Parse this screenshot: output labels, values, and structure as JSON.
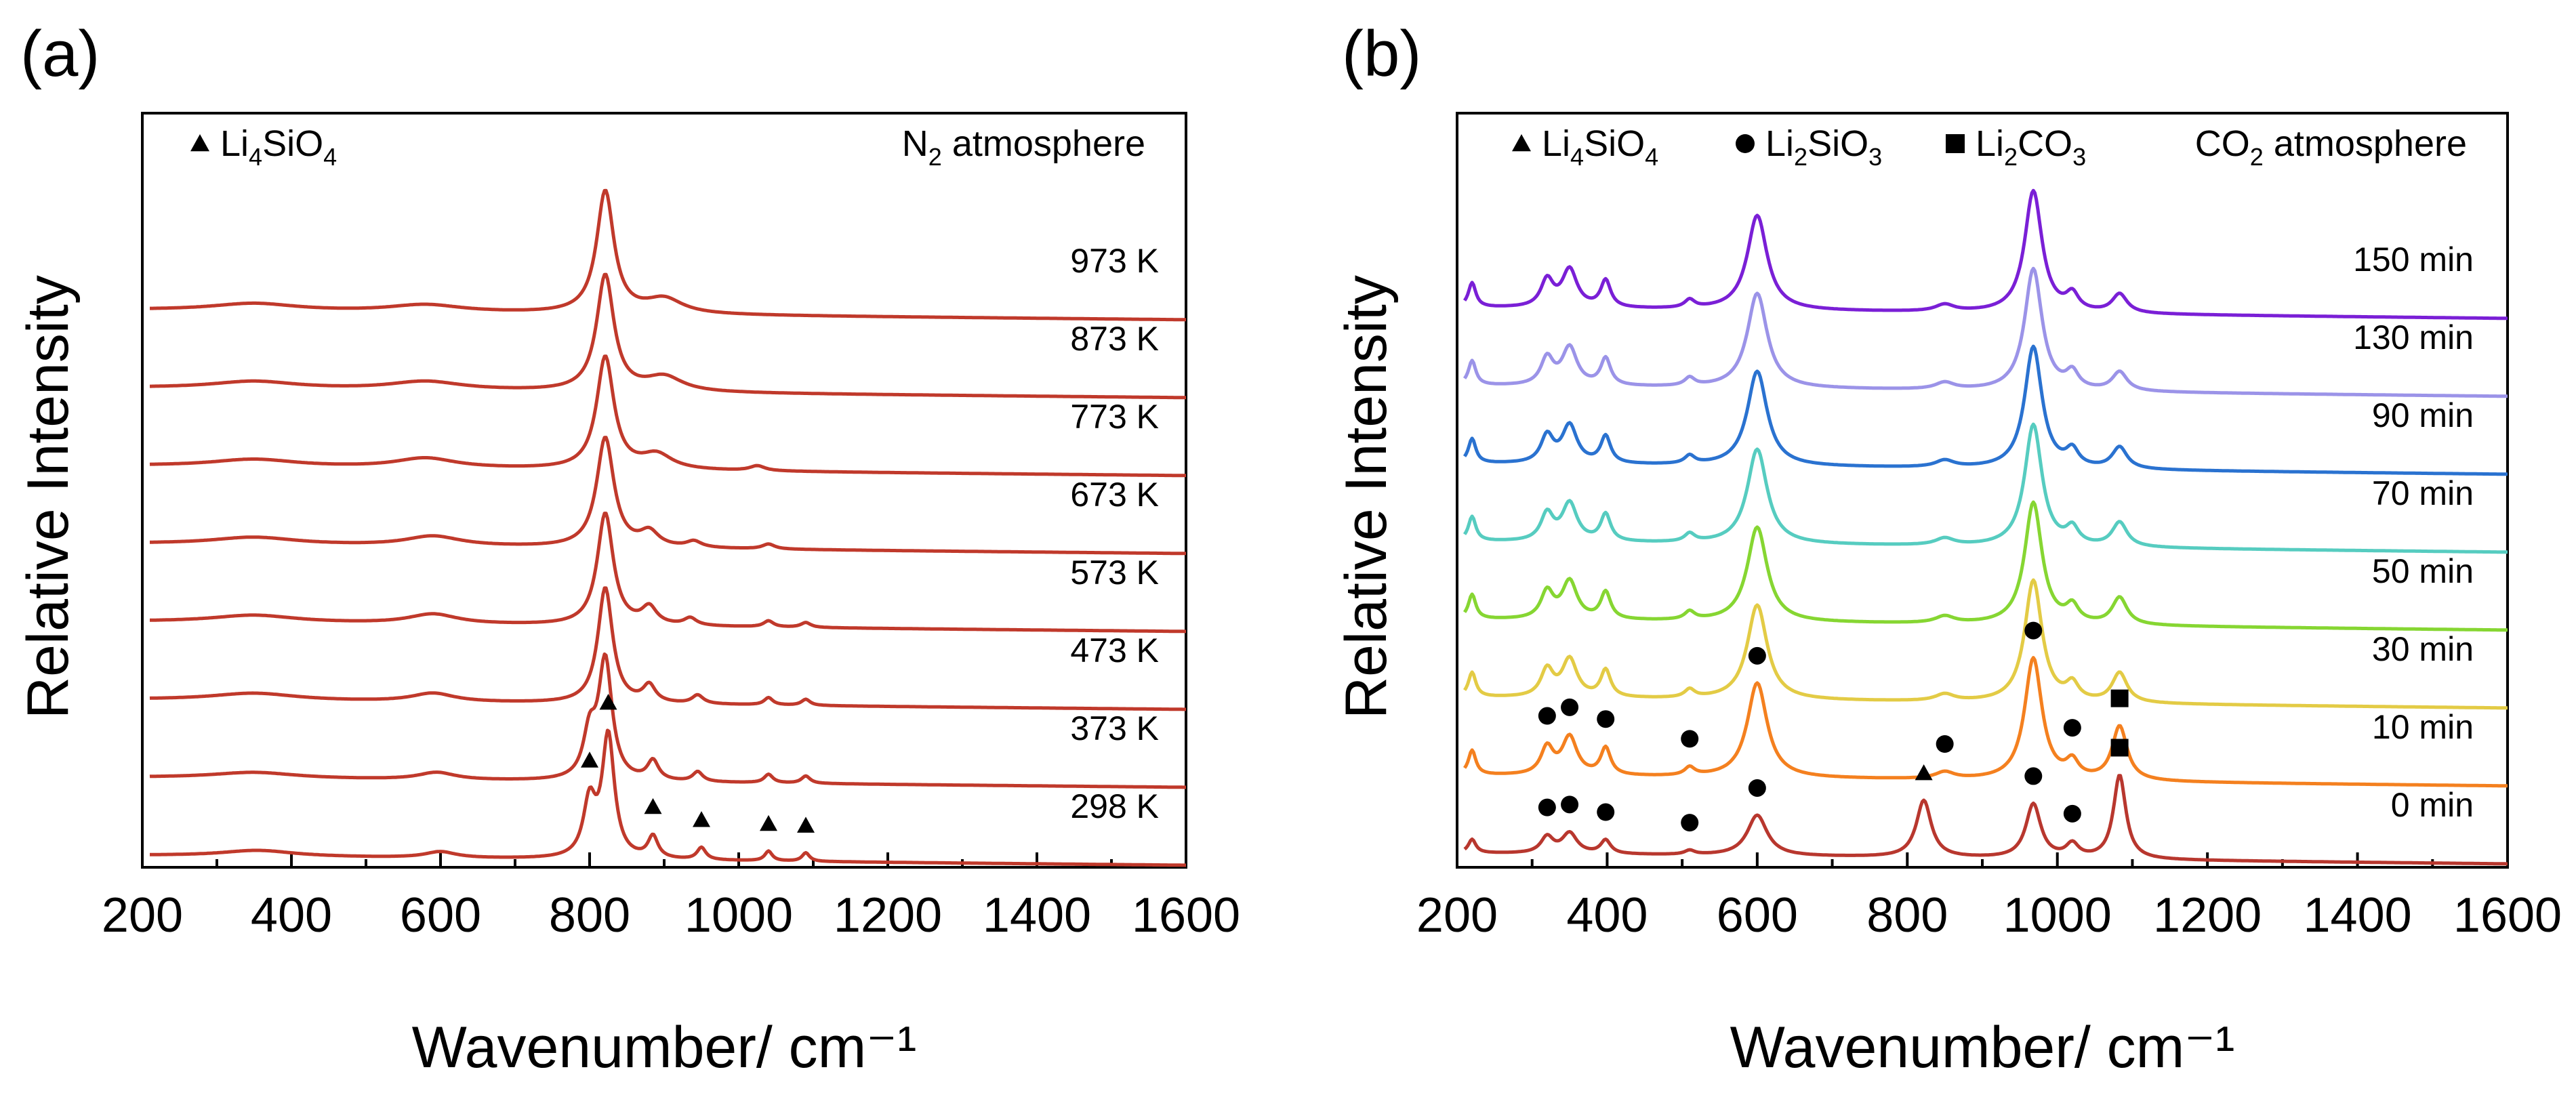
{
  "chart_data": [
    {
      "panel_label": "(a)",
      "type": "line",
      "xlabel": "Wavenumber/ cm⁻¹",
      "ylabel": "Relative Intensity",
      "xlim": [
        200,
        1600
      ],
      "xticks": [
        200,
        400,
        600,
        800,
        1000,
        1200,
        1400,
        1600
      ],
      "legend": {
        "position": "top-left",
        "entries": [
          {
            "marker": "triangle",
            "label": [
              "Li",
              "4",
              "SiO",
              "4",
              ""
            ]
          }
        ]
      },
      "annotation": {
        "position": "top-right",
        "text": [
          "N",
          "2",
          " atmosphere"
        ]
      },
      "series": [
        {
          "name": "973 K",
          "color": "#c0392b",
          "peaks": [
            [
              821,
              1.0,
              14
            ],
            [
              900,
              0.12,
              30
            ],
            [
              350,
              0.06,
              70
            ],
            [
              580,
              0.06,
              60
            ]
          ]
        },
        {
          "name": "873 K",
          "color": "#c0392b",
          "peaks": [
            [
              821,
              0.95,
              14
            ],
            [
              900,
              0.12,
              30
            ],
            [
              350,
              0.06,
              70
            ],
            [
              580,
              0.07,
              60
            ]
          ]
        },
        {
          "name": "773 K",
          "color": "#c0392b",
          "peaks": [
            [
              821,
              0.92,
              14
            ],
            [
              890,
              0.12,
              25
            ],
            [
              1025,
              0.04,
              12
            ],
            [
              350,
              0.06,
              70
            ],
            [
              580,
              0.08,
              50
            ]
          ]
        },
        {
          "name": "673 K",
          "color": "#c0392b",
          "peaks": [
            [
              821,
              0.9,
              14
            ],
            [
              880,
              0.12,
              15
            ],
            [
              940,
              0.05,
              12
            ],
            [
              1040,
              0.04,
              10
            ],
            [
              350,
              0.06,
              70
            ],
            [
              590,
              0.08,
              45
            ]
          ]
        },
        {
          "name": "573 K",
          "color": "#c0392b",
          "peaks": [
            [
              821,
              0.92,
              13
            ],
            [
              880,
              0.14,
              12
            ],
            [
              935,
              0.06,
              10
            ],
            [
              1040,
              0.05,
              8
            ],
            [
              1090,
              0.04,
              8
            ],
            [
              350,
              0.06,
              70
            ],
            [
              590,
              0.08,
              40
            ]
          ]
        },
        {
          "name": "473 K",
          "color": "#c0392b",
          "peaks": [
            [
              821,
              0.95,
              12
            ],
            [
              880,
              0.14,
              10
            ],
            [
              945,
              0.07,
              9
            ],
            [
              1040,
              0.06,
              7
            ],
            [
              1090,
              0.05,
              7
            ],
            [
              350,
              0.06,
              70
            ],
            [
              590,
              0.07,
              35
            ]
          ]
        },
        {
          "name": "373 K",
          "color": "#c0392b",
          "peaks": [
            [
              821,
              0.98,
              11
            ],
            [
              800,
              0.35,
              10
            ],
            [
              885,
              0.16,
              9
            ],
            [
              945,
              0.08,
              8
            ],
            [
              1040,
              0.07,
              7
            ],
            [
              1090,
              0.06,
              7
            ],
            [
              350,
              0.05,
              70
            ],
            [
              595,
              0.06,
              30
            ]
          ]
        },
        {
          "name": "298 K",
          "color": "#c0392b",
          "peaks": [
            [
              825,
              1.0,
              10
            ],
            [
              800,
              0.45,
              10
            ],
            [
              885,
              0.18,
              8
            ],
            [
              950,
              0.1,
              7
            ],
            [
              1040,
              0.08,
              6
            ],
            [
              1090,
              0.07,
              6
            ],
            [
              355,
              0.05,
              60
            ],
            [
              600,
              0.05,
              25
            ]
          ]
        }
      ],
      "markers": [
        {
          "symbol": "triangle",
          "x": 800,
          "series": "298 K"
        },
        {
          "symbol": "triangle",
          "x": 825,
          "series": "298 K"
        },
        {
          "symbol": "triangle",
          "x": 885,
          "series": "298 K"
        },
        {
          "symbol": "triangle",
          "x": 950,
          "series": "298 K"
        },
        {
          "symbol": "triangle",
          "x": 1040,
          "series": "298 K"
        },
        {
          "symbol": "triangle",
          "x": 1090,
          "series": "298 K"
        }
      ]
    },
    {
      "panel_label": "(b)",
      "type": "line",
      "xlabel": "Wavenumber/ cm⁻¹",
      "ylabel": "Relative Intensity",
      "xlim": [
        200,
        1600
      ],
      "xticks": [
        200,
        400,
        600,
        800,
        1000,
        1200,
        1400,
        1600
      ],
      "legend": {
        "position": "top-left",
        "entries": [
          {
            "marker": "triangle",
            "label": [
              "Li",
              "4",
              "SiO",
              "4",
              ""
            ]
          },
          {
            "marker": "circle",
            "label": [
              "Li",
              "2",
              "SiO",
              "3",
              ""
            ]
          },
          {
            "marker": "square",
            "label": [
              "Li",
              "2",
              "CO",
              "3",
              ""
            ]
          }
        ]
      },
      "annotation": {
        "position": "top-right",
        "text": [
          "CO",
          "2",
          " atmosphere"
        ]
      },
      "series": [
        {
          "name": "150 min",
          "color": "#7a1fd6",
          "peaks": [
            [
              220,
              0.18,
              6
            ],
            [
              320,
              0.2,
              10
            ],
            [
              350,
              0.28,
              12
            ],
            [
              398,
              0.2,
              8
            ],
            [
              510,
              0.06,
              8
            ],
            [
              600,
              0.7,
              16
            ],
            [
              850,
              0.05,
              15
            ],
            [
              968,
              0.9,
              14
            ],
            [
              1020,
              0.12,
              10
            ],
            [
              1083,
              0.14,
              12
            ]
          ]
        },
        {
          "name": "130 min",
          "color": "#9b93e8",
          "peaks": [
            [
              220,
              0.18,
              6
            ],
            [
              320,
              0.2,
              10
            ],
            [
              350,
              0.28,
              12
            ],
            [
              398,
              0.2,
              8
            ],
            [
              510,
              0.06,
              8
            ],
            [
              600,
              0.7,
              16
            ],
            [
              850,
              0.05,
              15
            ],
            [
              968,
              0.9,
              14
            ],
            [
              1020,
              0.12,
              10
            ],
            [
              1083,
              0.14,
              12
            ]
          ]
        },
        {
          "name": "90 min",
          "color": "#2a72d0",
          "peaks": [
            [
              220,
              0.18,
              6
            ],
            [
              320,
              0.2,
              10
            ],
            [
              350,
              0.28,
              12
            ],
            [
              398,
              0.2,
              8
            ],
            [
              510,
              0.06,
              8
            ],
            [
              600,
              0.7,
              16
            ],
            [
              850,
              0.05,
              15
            ],
            [
              968,
              0.9,
              14
            ],
            [
              1020,
              0.12,
              10
            ],
            [
              1083,
              0.16,
              12
            ]
          ]
        },
        {
          "name": "70 min",
          "color": "#56ccc0",
          "peaks": [
            [
              220,
              0.18,
              6
            ],
            [
              320,
              0.2,
              10
            ],
            [
              350,
              0.28,
              12
            ],
            [
              398,
              0.2,
              8
            ],
            [
              510,
              0.06,
              8
            ],
            [
              600,
              0.7,
              16
            ],
            [
              850,
              0.05,
              15
            ],
            [
              968,
              0.9,
              14
            ],
            [
              1020,
              0.12,
              10
            ],
            [
              1083,
              0.18,
              12
            ]
          ]
        },
        {
          "name": "50 min",
          "color": "#86d632",
          "peaks": [
            [
              220,
              0.18,
              6
            ],
            [
              320,
              0.2,
              10
            ],
            [
              350,
              0.28,
              12
            ],
            [
              398,
              0.2,
              8
            ],
            [
              510,
              0.06,
              8
            ],
            [
              600,
              0.7,
              16
            ],
            [
              850,
              0.05,
              15
            ],
            [
              968,
              0.9,
              14
            ],
            [
              1020,
              0.12,
              10
            ],
            [
              1083,
              0.2,
              12
            ]
          ]
        },
        {
          "name": "30 min",
          "color": "#e3cb45",
          "peaks": [
            [
              220,
              0.18,
              6
            ],
            [
              320,
              0.2,
              10
            ],
            [
              350,
              0.28,
              12
            ],
            [
              398,
              0.2,
              8
            ],
            [
              510,
              0.06,
              8
            ],
            [
              600,
              0.7,
              16
            ],
            [
              850,
              0.05,
              15
            ],
            [
              968,
              0.9,
              14
            ],
            [
              1020,
              0.12,
              10
            ],
            [
              1083,
              0.22,
              12
            ]
          ]
        },
        {
          "name": "10 min",
          "color": "#f4801f",
          "peaks": [
            [
              220,
              0.18,
              6
            ],
            [
              320,
              0.2,
              10
            ],
            [
              350,
              0.28,
              12
            ],
            [
              398,
              0.2,
              8
            ],
            [
              510,
              0.06,
              8
            ],
            [
              600,
              0.7,
              16
            ],
            [
              850,
              0.05,
              15
            ],
            [
              968,
              0.9,
              14
            ],
            [
              1020,
              0.12,
              10
            ],
            [
              1083,
              0.4,
              12
            ]
          ]
        },
        {
          "name": "0 min",
          "color": "#b8372e",
          "peaks": [
            [
              220,
              0.1,
              6
            ],
            [
              320,
              0.12,
              10
            ],
            [
              350,
              0.15,
              12
            ],
            [
              398,
              0.1,
              8
            ],
            [
              510,
              0.03,
              8
            ],
            [
              600,
              0.3,
              16
            ],
            [
              822,
              0.42,
              12
            ],
            [
              968,
              0.4,
              12
            ],
            [
              1020,
              0.1,
              10
            ],
            [
              1083,
              0.62,
              10
            ]
          ]
        }
      ],
      "markers": [
        {
          "symbol": "circle",
          "x": 320,
          "series": "10 min"
        },
        {
          "symbol": "circle",
          "x": 350,
          "series": "10 min"
        },
        {
          "symbol": "circle",
          "x": 398,
          "series": "10 min"
        },
        {
          "symbol": "circle",
          "x": 510,
          "series": "10 min"
        },
        {
          "symbol": "circle",
          "x": 600,
          "series": "10 min"
        },
        {
          "symbol": "circle",
          "x": 850,
          "series": "10 min"
        },
        {
          "symbol": "circle",
          "x": 968,
          "series": "10 min"
        },
        {
          "symbol": "circle",
          "x": 1020,
          "series": "10 min"
        },
        {
          "symbol": "square",
          "x": 1083,
          "series": "10 min"
        },
        {
          "symbol": "circle",
          "x": 320,
          "series": "0 min"
        },
        {
          "symbol": "circle",
          "x": 350,
          "series": "0 min"
        },
        {
          "symbol": "circle",
          "x": 398,
          "series": "0 min"
        },
        {
          "symbol": "circle",
          "x": 510,
          "series": "0 min"
        },
        {
          "symbol": "circle",
          "x": 600,
          "series": "0 min"
        },
        {
          "symbol": "triangle",
          "x": 822,
          "series": "0 min"
        },
        {
          "symbol": "circle",
          "x": 968,
          "series": "0 min"
        },
        {
          "symbol": "circle",
          "x": 1020,
          "series": "0 min"
        },
        {
          "symbol": "square",
          "x": 1083,
          "series": "0 min"
        }
      ]
    }
  ]
}
